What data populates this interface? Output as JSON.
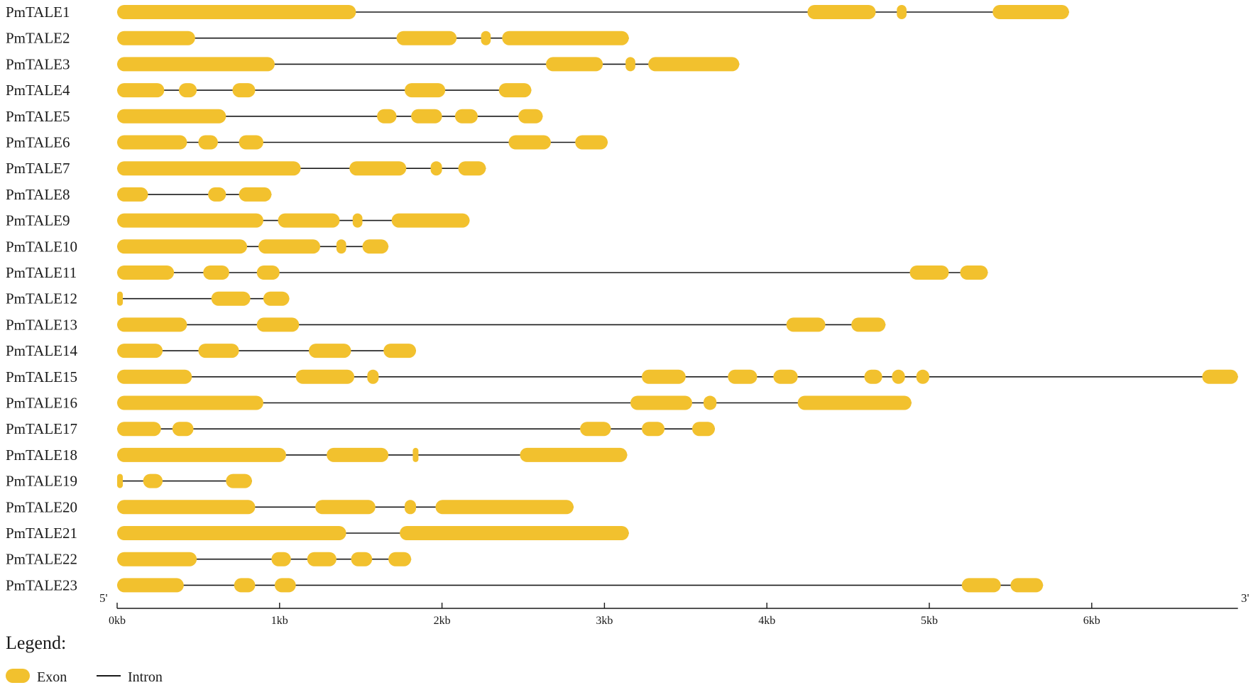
{
  "colors": {
    "exon": "#F2C12E",
    "intron": "#1a1a1a"
  },
  "axis": {
    "five_prime": "5'",
    "three_prime": "3'",
    "ticks": [
      {
        "value": 0,
        "label": "0kb"
      },
      {
        "value": 1000,
        "label": "1kb"
      },
      {
        "value": 2000,
        "label": "2kb"
      },
      {
        "value": 3000,
        "label": "3kb"
      },
      {
        "value": 4000,
        "label": "4kb"
      },
      {
        "value": 5000,
        "label": "5kb"
      },
      {
        "value": 6000,
        "label": "6kb"
      }
    ],
    "range_bp": [
      0,
      6900
    ]
  },
  "legend": {
    "title": "Legend:",
    "exon_label": "Exon",
    "intron_label": "Intron"
  },
  "genes": [
    {
      "name": "PmTALE1",
      "length": 5860,
      "exons": [
        [
          0,
          1470
        ],
        [
          4250,
          4670
        ],
        [
          4800,
          4860
        ],
        [
          5390,
          5860
        ]
      ]
    },
    {
      "name": "PmTALE2",
      "length": 3150,
      "exons": [
        [
          0,
          480
        ],
        [
          1720,
          2090
        ],
        [
          2240,
          2300
        ],
        [
          2370,
          3150
        ]
      ]
    },
    {
      "name": "PmTALE3",
      "length": 3830,
      "exons": [
        [
          0,
          970
        ],
        [
          2640,
          2990
        ],
        [
          3130,
          3190
        ],
        [
          3270,
          3830
        ]
      ]
    },
    {
      "name": "PmTALE4",
      "length": 2550,
      "exons": [
        [
          0,
          290
        ],
        [
          380,
          490
        ],
        [
          710,
          850
        ],
        [
          1770,
          2020
        ],
        [
          2350,
          2550
        ]
      ]
    },
    {
      "name": "PmTALE5",
      "length": 2620,
      "exons": [
        [
          0,
          670
        ],
        [
          1600,
          1720
        ],
        [
          1810,
          2000
        ],
        [
          2080,
          2220
        ],
        [
          2470,
          2620
        ]
      ]
    },
    {
      "name": "PmTALE6",
      "length": 3020,
      "exons": [
        [
          0,
          430
        ],
        [
          500,
          620
        ],
        [
          750,
          900
        ],
        [
          2410,
          2670
        ],
        [
          2820,
          3020
        ]
      ]
    },
    {
      "name": "PmTALE7",
      "length": 2270,
      "exons": [
        [
          0,
          1130
        ],
        [
          1430,
          1780
        ],
        [
          1930,
          2000
        ],
        [
          2100,
          2270
        ]
      ]
    },
    {
      "name": "PmTALE8",
      "length": 950,
      "exons": [
        [
          0,
          190
        ],
        [
          560,
          670
        ],
        [
          750,
          950
        ]
      ]
    },
    {
      "name": "PmTALE9",
      "length": 2170,
      "exons": [
        [
          0,
          900
        ],
        [
          990,
          1370
        ],
        [
          1450,
          1510
        ],
        [
          1690,
          2170
        ]
      ]
    },
    {
      "name": "PmTALE10",
      "length": 1670,
      "exons": [
        [
          0,
          800
        ],
        [
          870,
          1250
        ],
        [
          1350,
          1410
        ],
        [
          1510,
          1670
        ]
      ]
    },
    {
      "name": "PmTALE11",
      "length": 5360,
      "exons": [
        [
          0,
          350
        ],
        [
          530,
          690
        ],
        [
          860,
          1000
        ],
        [
          4880,
          5120
        ],
        [
          5190,
          5360
        ]
      ]
    },
    {
      "name": "PmTALE12",
      "length": 1060,
      "exons": [
        [
          0,
          30
        ],
        [
          580,
          820
        ],
        [
          900,
          1060
        ]
      ]
    },
    {
      "name": "PmTALE13",
      "length": 4730,
      "exons": [
        [
          0,
          430
        ],
        [
          860,
          1120
        ],
        [
          4120,
          4360
        ],
        [
          4520,
          4730
        ]
      ]
    },
    {
      "name": "PmTALE14",
      "length": 1840,
      "exons": [
        [
          0,
          280
        ],
        [
          500,
          750
        ],
        [
          1180,
          1440
        ],
        [
          1640,
          1840
        ]
      ]
    },
    {
      "name": "PmTALE15",
      "length": 6900,
      "exons": [
        [
          0,
          460
        ],
        [
          1100,
          1460
        ],
        [
          1540,
          1610
        ],
        [
          3230,
          3500
        ],
        [
          3760,
          3940
        ],
        [
          4040,
          4190
        ],
        [
          4600,
          4710
        ],
        [
          4770,
          4850
        ],
        [
          4920,
          5000
        ],
        [
          6680,
          6900
        ]
      ]
    },
    {
      "name": "PmTALE16",
      "length": 4890,
      "exons": [
        [
          0,
          900
        ],
        [
          3160,
          3540
        ],
        [
          3610,
          3690
        ],
        [
          4190,
          4890
        ]
      ]
    },
    {
      "name": "PmTALE17",
      "length": 3680,
      "exons": [
        [
          0,
          270
        ],
        [
          340,
          470
        ],
        [
          2850,
          3040
        ],
        [
          3230,
          3370
        ],
        [
          3540,
          3680
        ]
      ]
    },
    {
      "name": "PmTALE18",
      "length": 3140,
      "exons": [
        [
          0,
          1040
        ],
        [
          1290,
          1670
        ],
        [
          1820,
          1850
        ],
        [
          2480,
          3140
        ]
      ]
    },
    {
      "name": "PmTALE19",
      "length": 830,
      "exons": [
        [
          0,
          30
        ],
        [
          160,
          280
        ],
        [
          670,
          830
        ]
      ]
    },
    {
      "name": "PmTALE20",
      "length": 2810,
      "exons": [
        [
          0,
          850
        ],
        [
          1220,
          1590
        ],
        [
          1770,
          1840
        ],
        [
          1960,
          2810
        ]
      ]
    },
    {
      "name": "PmTALE21",
      "length": 3150,
      "exons": [
        [
          0,
          1410
        ],
        [
          1740,
          3150
        ]
      ]
    },
    {
      "name": "PmTALE22",
      "length": 1810,
      "exons": [
        [
          0,
          490
        ],
        [
          950,
          1070
        ],
        [
          1170,
          1350
        ],
        [
          1440,
          1570
        ],
        [
          1670,
          1810
        ]
      ]
    },
    {
      "name": "PmTALE23",
      "length": 5700,
      "exons": [
        [
          0,
          410
        ],
        [
          720,
          850
        ],
        [
          970,
          1100
        ],
        [
          5200,
          5440
        ],
        [
          5500,
          5700
        ]
      ]
    }
  ]
}
